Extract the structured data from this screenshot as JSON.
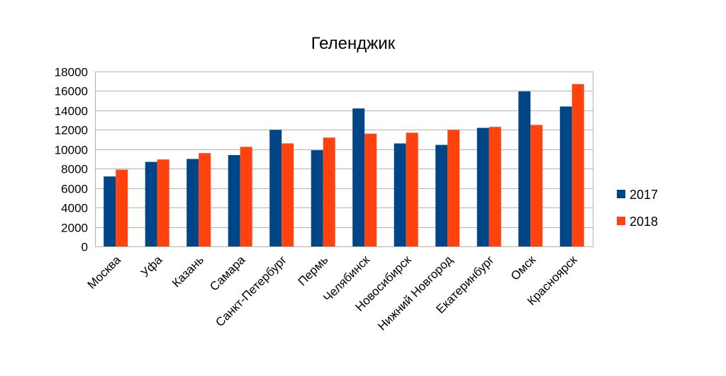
{
  "chart_data": {
    "type": "bar",
    "title": "Геленджик",
    "xlabel": "",
    "ylabel": "",
    "categories": [
      "Москва",
      "Уфа",
      "Казань",
      "Самара",
      "Санкт-Петербург",
      "Пермь",
      "Челябинск",
      "Новосибирск",
      "Нижний Новгород",
      "Екатеринбург",
      "Омск",
      "Красноярск"
    ],
    "series": [
      {
        "name": "2017",
        "color": "#004586",
        "values": [
          7200,
          8700,
          9000,
          9400,
          12000,
          9900,
          14200,
          10600,
          10450,
          12200,
          15950,
          14400
        ]
      },
      {
        "name": "2018",
        "color": "#ff420e",
        "values": [
          7900,
          8950,
          9600,
          10250,
          10600,
          11200,
          11600,
          11700,
          12000,
          12300,
          12500,
          16700
        ]
      }
    ],
    "ylim": [
      0,
      18000
    ],
    "yticks": [
      "0",
      "2000",
      "4000",
      "6000",
      "8000",
      "10000",
      "12000",
      "14000",
      "16000",
      "18000"
    ],
    "ytick_values": [
      0,
      2000,
      4000,
      6000,
      8000,
      10000,
      12000,
      14000,
      16000,
      18000
    ],
    "grid": true,
    "legend_position": "right"
  }
}
